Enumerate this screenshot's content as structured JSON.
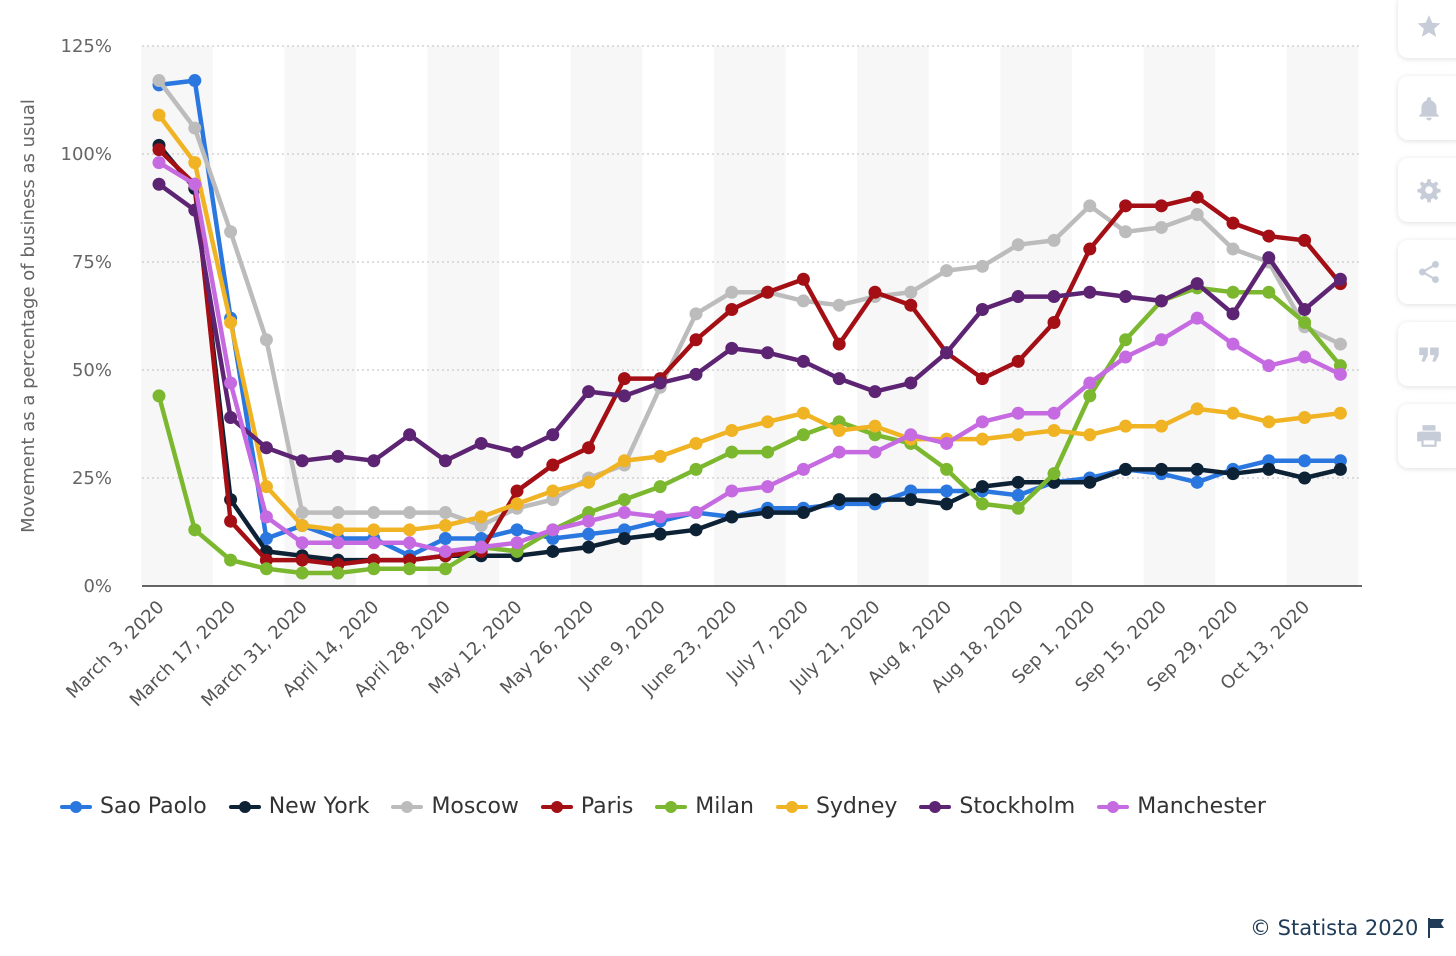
{
  "chart_data": {
    "type": "line",
    "ylabel": "Movement as a percentage of business as usual",
    "xlabel": "",
    "ylim": [
      0,
      125
    ],
    "yticks": [
      0,
      25,
      50,
      75,
      100,
      125
    ],
    "ytick_labels": [
      "0%",
      "25%",
      "50%",
      "75%",
      "100%",
      "125%"
    ],
    "grid": true,
    "legend_position": "bottom",
    "x_tick_labels": [
      "March 3, 2020",
      "March 17, 2020",
      "March 31, 2020",
      "April 14, 2020",
      "April 28, 2020",
      "May 12, 2020",
      "May 26, 2020",
      "June 9, 2020",
      "June 23, 2020",
      "July 7, 2020",
      "July 21, 2020",
      "Aug 4, 2020",
      "Aug 18, 2020",
      "Sep 1, 2020",
      "Sep 15, 2020",
      "Sep 29, 2020",
      "Oct 13, 2020"
    ],
    "series": [
      {
        "name": "Sao Paolo",
        "color": "#2a77e0",
        "values": [
          116,
          117,
          62,
          11,
          14,
          11,
          11,
          7,
          11,
          11,
          13,
          11,
          12,
          13,
          15,
          17,
          16,
          18,
          18,
          19,
          19,
          22,
          22,
          22,
          21,
          24,
          25,
          27,
          26,
          24,
          27,
          29,
          29,
          29
        ]
      },
      {
        "name": "New York",
        "color": "#0e2236",
        "values": [
          102,
          92,
          20,
          8,
          7,
          6,
          6,
          6,
          7,
          7,
          7,
          8,
          9,
          11,
          12,
          13,
          16,
          17,
          17,
          20,
          20,
          20,
          19,
          23,
          24,
          24,
          24,
          27,
          27,
          27,
          26,
          27,
          25,
          27
        ]
      },
      {
        "name": "Moscow",
        "color": "#bcbcbc",
        "values": [
          117,
          106,
          82,
          57,
          17,
          17,
          17,
          17,
          17,
          14,
          18,
          20,
          25,
          28,
          46,
          63,
          68,
          68,
          66,
          65,
          67,
          68,
          73,
          74,
          79,
          80,
          88,
          82,
          83,
          86,
          78,
          75,
          60,
          56
        ]
      },
      {
        "name": "Paris",
        "color": "#a30f14",
        "values": [
          101,
          93,
          15,
          6,
          6,
          5,
          6,
          6,
          7,
          8,
          22,
          28,
          32,
          48,
          48,
          57,
          64,
          68,
          71,
          56,
          68,
          65,
          54,
          48,
          52,
          61,
          78,
          88,
          88,
          90,
          84,
          81,
          80,
          70
        ]
      },
      {
        "name": "Milan",
        "color": "#7cb82f",
        "values": [
          44,
          13,
          6,
          4,
          3,
          3,
          4,
          4,
          4,
          9,
          8,
          13,
          17,
          20,
          23,
          27,
          31,
          31,
          35,
          38,
          35,
          33,
          27,
          19,
          18,
          26,
          44,
          57,
          66,
          69,
          68,
          68,
          61,
          51
        ]
      },
      {
        "name": "Sydney",
        "color": "#f0b323",
        "values": [
          109,
          98,
          61,
          23,
          14,
          13,
          13,
          13,
          14,
          16,
          19,
          22,
          24,
          29,
          30,
          33,
          36,
          38,
          40,
          36,
          37,
          34,
          34,
          34,
          35,
          36,
          35,
          37,
          37,
          41,
          40,
          38,
          39,
          40
        ]
      },
      {
        "name": "Stockholm",
        "color": "#5c2472",
        "values": [
          93,
          87,
          39,
          32,
          29,
          30,
          29,
          35,
          29,
          33,
          31,
          35,
          45,
          44,
          47,
          49,
          55,
          54,
          52,
          48,
          45,
          47,
          54,
          64,
          67,
          67,
          68,
          67,
          66,
          70,
          63,
          76,
          64,
          71
        ]
      },
      {
        "name": "Manchester",
        "color": "#c56ae0",
        "values": [
          98,
          93,
          47,
          16,
          10,
          10,
          10,
          10,
          8,
          9,
          10,
          13,
          15,
          17,
          16,
          17,
          22,
          23,
          27,
          31,
          31,
          35,
          33,
          38,
          40,
          40,
          47,
          53,
          57,
          62,
          56,
          51,
          53,
          49
        ]
      }
    ]
  },
  "legend": {
    "items": [
      {
        "label": "Sao Paolo",
        "color": "#2a77e0"
      },
      {
        "label": "New York",
        "color": "#0e2236"
      },
      {
        "label": "Moscow",
        "color": "#bcbcbc"
      },
      {
        "label": "Paris",
        "color": "#a30f14"
      },
      {
        "label": "Milan",
        "color": "#7cb82f"
      },
      {
        "label": "Sydney",
        "color": "#f0b323"
      },
      {
        "label": "Stockholm",
        "color": "#5c2472"
      },
      {
        "label": "Manchester",
        "color": "#c56ae0"
      }
    ]
  },
  "sidebar": {
    "buttons": [
      {
        "icon": "star-icon"
      },
      {
        "icon": "bell-icon"
      },
      {
        "icon": "gear-icon"
      },
      {
        "icon": "share-icon"
      },
      {
        "icon": "quote-icon"
      },
      {
        "icon": "print-icon"
      }
    ]
  },
  "footer": {
    "credit": "© Statista 2020",
    "flag_icon": "flag-icon"
  }
}
